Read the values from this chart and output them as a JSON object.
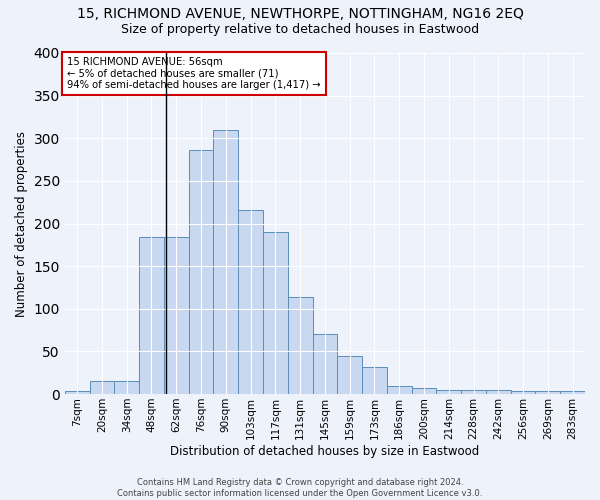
{
  "title1": "15, RICHMOND AVENUE, NEWTHORPE, NOTTINGHAM, NG16 2EQ",
  "title2": "Size of property relative to detached houses in Eastwood",
  "xlabel": "Distribution of detached houses by size in Eastwood",
  "ylabel": "Number of detached properties",
  "categories": [
    "7sqm",
    "20sqm",
    "34sqm",
    "48sqm",
    "62sqm",
    "76sqm",
    "90sqm",
    "103sqm",
    "117sqm",
    "131sqm",
    "145sqm",
    "159sqm",
    "173sqm",
    "186sqm",
    "200sqm",
    "214sqm",
    "228sqm",
    "242sqm",
    "256sqm",
    "269sqm",
    "283sqm"
  ],
  "values": [
    3,
    15,
    15,
    184,
    184,
    286,
    310,
    216,
    190,
    114,
    70,
    45,
    32,
    10,
    7,
    5,
    5,
    5,
    3,
    3,
    3
  ],
  "bar_color": "#c8d8f0",
  "bar_edge_color": "#5b8db8",
  "annotation_text": "15 RICHMOND AVENUE: 56sqm\n← 5% of detached houses are smaller (71)\n94% of semi-detached houses are larger (1,417) →",
  "annotation_box_color": "#ffffff",
  "annotation_box_edge": "#cc0000",
  "bg_color": "#eef2fa",
  "grid_color": "#ffffff",
  "footer_text": "Contains HM Land Registry data © Crown copyright and database right 2024.\nContains public sector information licensed under the Open Government Licence v3.0.",
  "ylim": [
    0,
    400
  ],
  "title1_fontsize": 10,
  "title2_fontsize": 9,
  "xlabel_fontsize": 8.5,
  "ylabel_fontsize": 8.5,
  "tick_fontsize": 7.5,
  "footer_fontsize": 6,
  "line_x_index": 3.57
}
